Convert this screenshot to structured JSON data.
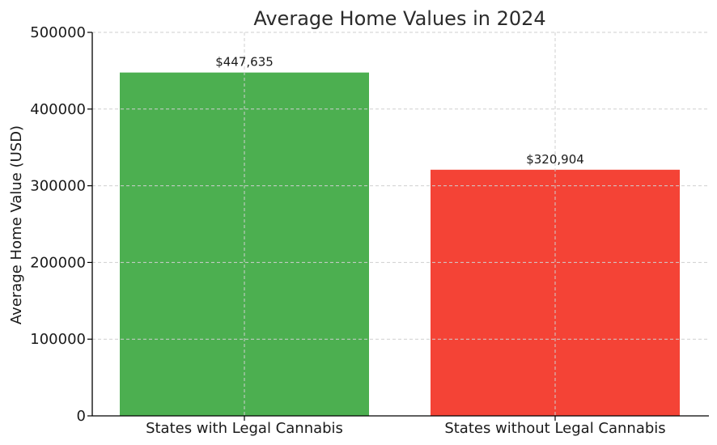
{
  "chart_data": {
    "type": "bar",
    "title": "Average Home Values in 2024",
    "xlabel": "",
    "ylabel": "Average Home Value (USD)",
    "categories": [
      "States with Legal Cannabis",
      "States without Legal Cannabis"
    ],
    "values": [
      447635,
      320904
    ],
    "data_labels": [
      "$447,635",
      "$320,904"
    ],
    "colors": [
      "#4caf50",
      "#f44336"
    ],
    "ylim": [
      0,
      500000
    ],
    "yticks": [
      0,
      100000,
      200000,
      300000,
      400000,
      500000
    ],
    "ytick_labels": [
      "0",
      "100000",
      "200000",
      "300000",
      "400000",
      "500000"
    ],
    "grid": true
  }
}
